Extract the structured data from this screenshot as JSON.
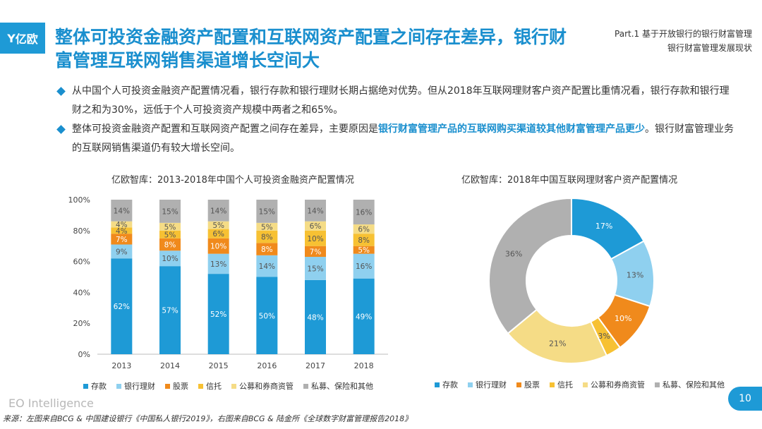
{
  "logo": {
    "icon": "yiou-y-icon",
    "text": "亿欧"
  },
  "title": "整体可投资金融资产配置和互联网资产配置之间存在差异，银行财富管理互联网销售渠道增长空间大",
  "part": {
    "line1": "Part.1  基于开放银行的银行财富管理",
    "line2": "银行财富管理发展现状"
  },
  "bullets": [
    {
      "text": "从中国个人可投资金融资产配置情况看，银行存款和银行理财长期占据绝对优势。但从2018年互联网理财客户资产配置比重情况看，银行存款和银行理财之和为30%，远低于个人可投资资产规模中两者之和65%。"
    },
    {
      "pre": "整体可投资金融资产配置和互联网资产配置之间存在差异，主要原因是",
      "highlight": "银行财富管理产品的互联网购买渠道较其他财富管理产品更少",
      "post": "。银行财富管理业务的互联网销售渠道仍有较大增长空间。"
    }
  ],
  "colors": {
    "accent": "#1a8fce",
    "series": [
      "#1e9ad6",
      "#8fd0ef",
      "#f08a1c",
      "#f7c133",
      "#f5dc86",
      "#b0b0b0"
    ]
  },
  "chart_data": [
    {
      "type": "bar",
      "stacked": true,
      "title": "亿欧智库：2013-2018年中国个人可投资金融资产配置情况",
      "categories": [
        "2013",
        "2014",
        "2015",
        "2016",
        "2017",
        "2018"
      ],
      "yticks": [
        "0%",
        "20%",
        "40%",
        "60%",
        "80%",
        "100%"
      ],
      "ylim": [
        0,
        100
      ],
      "grid": false,
      "legend_position": "bottom",
      "series": [
        {
          "name": "存款",
          "values": [
            62,
            57,
            52,
            50,
            48,
            49
          ],
          "labels": [
            "62%",
            "57%",
            "52%",
            "50%",
            "48%",
            "49%"
          ]
        },
        {
          "name": "银行理财",
          "values": [
            9,
            10,
            13,
            14,
            15,
            16
          ],
          "labels": [
            "9%",
            "10%",
            "13%",
            "14%",
            "15%",
            "16%"
          ]
        },
        {
          "name": "股票",
          "values": [
            7,
            8,
            10,
            8,
            7,
            5
          ],
          "labels": [
            "7%",
            "8%",
            "10%",
            "8%",
            "7%",
            "5%"
          ]
        },
        {
          "name": "信托",
          "values": [
            4,
            5,
            6,
            8,
            10,
            8
          ],
          "labels": [
            "4%",
            "5%",
            "6%",
            "8%",
            "10%",
            "8%"
          ]
        },
        {
          "name": "公募和券商资管",
          "values": [
            4,
            5,
            5,
            5,
            6,
            6
          ],
          "labels": [
            "4%",
            "5%",
            "5%",
            "5%",
            "6%",
            "6%"
          ]
        },
        {
          "name": "私募、保险和其他",
          "values": [
            14,
            15,
            14,
            15,
            14,
            16
          ],
          "labels": [
            "14%",
            "15%",
            "14%",
            "15%",
            "14%",
            "16%"
          ]
        }
      ]
    },
    {
      "type": "pie",
      "donut": true,
      "title": "亿欧智库：2018年中国互联网理财客户资产配置情况",
      "legend_position": "bottom",
      "slices": [
        {
          "name": "存款",
          "value": 17,
          "label": "17%"
        },
        {
          "name": "银行理财",
          "value": 13,
          "label": "13%"
        },
        {
          "name": "股票",
          "value": 10,
          "label": "10%"
        },
        {
          "name": "信托",
          "value": 3,
          "label": "3%"
        },
        {
          "name": "公募和券商资管",
          "value": 21,
          "label": "21%"
        },
        {
          "name": "私募、保险和其他",
          "value": 36,
          "label": "36%"
        }
      ]
    }
  ],
  "footer": {
    "brand": "EO Intelligence",
    "page": "10",
    "source": "来源：左图来自BCG & 中国建设银行《中国私人银行2019》，右图来自BCG & 陆金所《全球数字财富管理报告2018》"
  }
}
